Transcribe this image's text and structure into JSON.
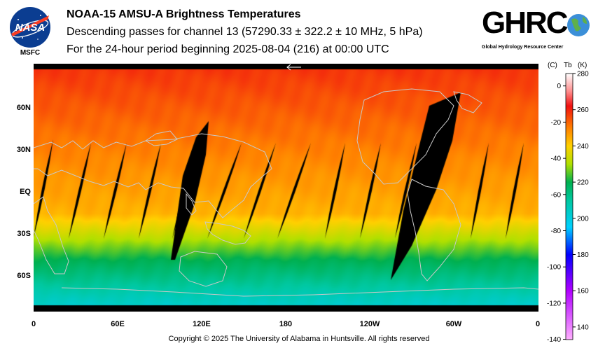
{
  "header": {
    "logo_left_text": "MSFC",
    "title_line1": "NOAA-15 AMSU-A Brightness Temperatures",
    "title_line2": "Descending passes for channel 13 (57290.33 ± 322.2 ± 10 MHz, 5 hPa)",
    "title_line3": "For the 24-hour period beginning 2025-08-04 (216) at 00:00 UTC",
    "logo_right_word": "GHRC",
    "logo_right_sub": "Global Hydrology Resource Center"
  },
  "map": {
    "projection": "equirectangular",
    "lon_start": 0,
    "lat_labels": [
      "60N",
      "30N",
      "EQ",
      "30S",
      "60S"
    ],
    "lon_labels": [
      "0",
      "60E",
      "120E",
      "180",
      "120W",
      "60W",
      "0"
    ],
    "colors": {
      "no_data": "#000000",
      "coastline": "#c8c8c8"
    }
  },
  "colorbar": {
    "header_c": "(C)",
    "header_tb": "Tb",
    "header_k": "(K)",
    "kelvin_ticks": [
      "280",
      "260",
      "240",
      "220",
      "200",
      "180",
      "160",
      "140"
    ],
    "celsius_ticks": [
      "0",
      "-20",
      "-40",
      "-60",
      "-80",
      "-100",
      "-120",
      "-140"
    ],
    "kelvin_range": [
      133,
      280
    ],
    "stops": [
      {
        "k": 280,
        "color": "#ffffff"
      },
      {
        "k": 270,
        "color": "#ff8c8c"
      },
      {
        "k": 262,
        "color": "#f01010"
      },
      {
        "k": 250,
        "color": "#ff8000"
      },
      {
        "k": 240,
        "color": "#ffd000"
      },
      {
        "k": 230,
        "color": "#b0e000"
      },
      {
        "k": 220,
        "color": "#00b050"
      },
      {
        "k": 210,
        "color": "#00c8a0"
      },
      {
        "k": 195,
        "color": "#00d0ff"
      },
      {
        "k": 180,
        "color": "#0000ff"
      },
      {
        "k": 160,
        "color": "#b000ff"
      },
      {
        "k": 133,
        "color": "#ffb0ff"
      }
    ]
  },
  "footer": {
    "copyright": "Copyright © 2025 The University of Alabama in Huntsville.  All rights reserved"
  }
}
